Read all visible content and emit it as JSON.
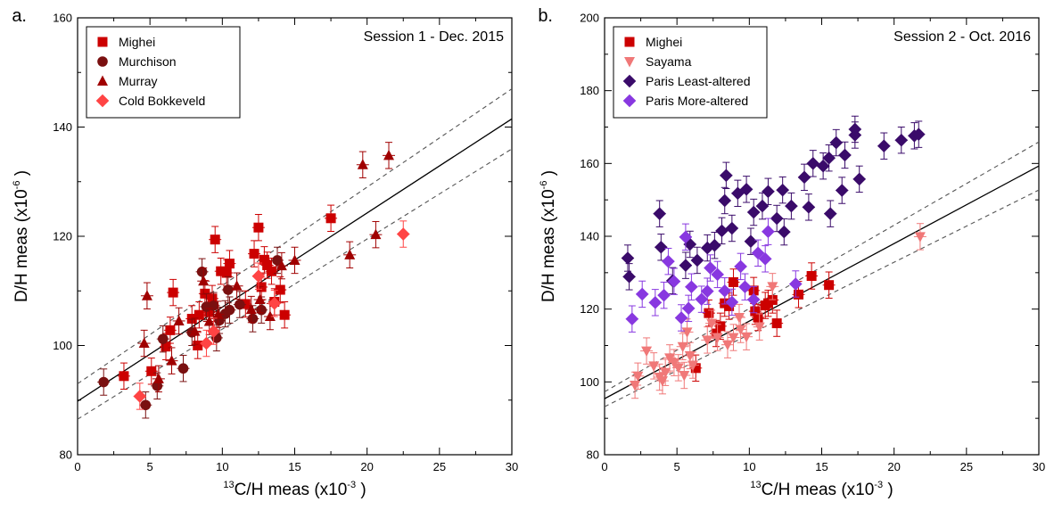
{
  "chart_data": [
    {
      "type": "scatter",
      "panel_label": "a.",
      "title": "Session 1 - Dec. 2015",
      "xlabel": {
        "sup": "13",
        "main": "C/H meas (x10",
        "exp": "-3",
        "close": " )"
      },
      "ylabel": {
        "main": "D/H meas (x10",
        "exp": "-6",
        "close": " )"
      },
      "xlim": [
        0,
        30
      ],
      "ylim": [
        80,
        160
      ],
      "xticks": [
        "0",
        "5",
        "10",
        "15",
        "20",
        "25",
        "30"
      ],
      "yticks": [
        "80",
        "100",
        "120",
        "140",
        "160"
      ],
      "legend_position": "top-left",
      "fit_line": {
        "x": [
          0,
          30
        ],
        "y": [
          89.8,
          141.5
        ]
      },
      "fit_band": {
        "upper": {
          "x": [
            0,
            30
          ],
          "y": [
            93.0,
            147.0
          ]
        },
        "lower": {
          "x": [
            0,
            30
          ],
          "y": [
            86.5,
            136.0
          ]
        }
      },
      "series": [
        {
          "name": "Mighei",
          "marker": "square",
          "color": "#cc0000",
          "points": [
            [
              3.2,
              94.4
            ],
            [
              5.1,
              95.3
            ],
            [
              6.1,
              99.8
            ],
            [
              6.4,
              102.8
            ],
            [
              6.6,
              109.7
            ],
            [
              7.9,
              104.9
            ],
            [
              8.3,
              100.0
            ],
            [
              8.4,
              105.6
            ],
            [
              8.8,
              109.5
            ],
            [
              9.1,
              106.1
            ],
            [
              9.3,
              108.6
            ],
            [
              9.5,
              119.4
            ],
            [
              9.9,
              113.6
            ],
            [
              10.3,
              113.3
            ],
            [
              10.5,
              115.0
            ],
            [
              11.6,
              107.6
            ],
            [
              12.2,
              116.8
            ],
            [
              12.5,
              121.6
            ],
            [
              12.7,
              110.7
            ],
            [
              12.9,
              115.7
            ],
            [
              13.1,
              114.7
            ],
            [
              13.4,
              113.6
            ],
            [
              13.6,
              108.0
            ],
            [
              14.0,
              110.2
            ],
            [
              14.3,
              105.6
            ],
            [
              17.5,
              123.3
            ]
          ]
        },
        {
          "name": "Murchison",
          "marker": "circle",
          "color": "#7a1010",
          "points": [
            [
              1.8,
              93.3
            ],
            [
              4.7,
              89.1
            ],
            [
              5.5,
              92.6
            ],
            [
              5.9,
              101.2
            ],
            [
              7.3,
              95.8
            ],
            [
              7.9,
              102.4
            ],
            [
              8.6,
              113.5
            ],
            [
              8.9,
              107.1
            ],
            [
              9.4,
              107.3
            ],
            [
              9.6,
              101.4
            ],
            [
              9.8,
              104.6
            ],
            [
              10.2,
              105.8
            ],
            [
              10.4,
              110.2
            ],
            [
              10.5,
              106.5
            ],
            [
              11.2,
              107.5
            ],
            [
              12.1,
              104.9
            ],
            [
              12.7,
              106.5
            ],
            [
              13.8,
              115.6
            ]
          ]
        },
        {
          "name": "Murray",
          "marker": "triangle",
          "color": "#a00000",
          "points": [
            [
              4.6,
              100.4
            ],
            [
              4.8,
              109.1
            ],
            [
              5.6,
              93.9
            ],
            [
              6.5,
              97.2
            ],
            [
              7.0,
              104.5
            ],
            [
              8.1,
              102.6
            ],
            [
              8.7,
              111.8
            ],
            [
              9.1,
              104.4
            ],
            [
              9.7,
              105.7
            ],
            [
              11.0,
              110.9
            ],
            [
              12.0,
              106.6
            ],
            [
              12.6,
              108.4
            ],
            [
              13.3,
              105.3
            ],
            [
              14.1,
              114.6
            ],
            [
              15.0,
              115.6
            ],
            [
              18.8,
              116.6
            ],
            [
              19.7,
              133.1
            ],
            [
              20.6,
              120.3
            ],
            [
              21.5,
              134.8
            ]
          ]
        },
        {
          "name": "Cold Bokkeveld",
          "marker": "diamond",
          "color": "#ff4444",
          "points": [
            [
              4.3,
              90.7
            ],
            [
              8.9,
              100.4
            ],
            [
              9.4,
              102.6
            ],
            [
              12.5,
              112.7
            ],
            [
              13.6,
              107.7
            ],
            [
              22.5,
              120.4
            ]
          ]
        }
      ]
    },
    {
      "type": "scatter",
      "panel_label": "b.",
      "title": "Session 2 - Oct. 2016",
      "xlabel": {
        "sup": "13",
        "main": "C/H meas (x10",
        "exp": "-3",
        "close": " )"
      },
      "ylabel": {
        "main": "D/H meas (x10",
        "exp": "-6",
        "close": " )"
      },
      "xlim": [
        0,
        30
      ],
      "ylim": [
        80,
        200
      ],
      "xticks": [
        "0",
        "5",
        "10",
        "15",
        "20",
        "25",
        "30"
      ],
      "yticks": [
        "80",
        "100",
        "120",
        "140",
        "160",
        "180",
        "200"
      ],
      "legend_position": "top-left",
      "fit_line": {
        "x": [
          0,
          30
        ],
        "y": [
          95.4,
          159.3
        ]
      },
      "fit_band": {
        "upper": {
          "x": [
            0,
            30
          ],
          "y": [
            97.3,
            165.9
          ]
        },
        "lower": {
          "x": [
            0,
            30
          ],
          "y": [
            93.2,
            152.7
          ]
        }
      },
      "series": [
        {
          "name": "Mighei",
          "marker": "square",
          "color": "#cc0000",
          "points": [
            [
              6.3,
              103.8
            ],
            [
              7.2,
              118.9
            ],
            [
              7.7,
              113.3
            ],
            [
              8.0,
              115.3
            ],
            [
              8.3,
              121.6
            ],
            [
              8.6,
              120.8
            ],
            [
              8.9,
              127.4
            ],
            [
              10.3,
              125.1
            ],
            [
              10.4,
              119.4
            ],
            [
              10.6,
              117.7
            ],
            [
              11.1,
              121.0
            ],
            [
              11.3,
              121.6
            ],
            [
              11.6,
              122.5
            ],
            [
              11.9,
              116.1
            ],
            [
              13.4,
              124.0
            ],
            [
              14.3,
              129.1
            ],
            [
              15.5,
              126.6
            ]
          ]
        },
        {
          "name": "Sayama",
          "marker": "triangle-down",
          "color": "#f07878",
          "points": [
            [
              2.1,
              99.1
            ],
            [
              2.3,
              101.6
            ],
            [
              2.9,
              108.5
            ],
            [
              3.4,
              104.4
            ],
            [
              3.8,
              101.3
            ],
            [
              4.0,
              100.3
            ],
            [
              4.2,
              102.6
            ],
            [
              4.5,
              106.6
            ],
            [
              4.8,
              105.3
            ],
            [
              5.1,
              103.9
            ],
            [
              5.4,
              109.7
            ],
            [
              5.5,
              101.8
            ],
            [
              5.7,
              113.7
            ],
            [
              5.9,
              107.2
            ],
            [
              6.1,
              104.6
            ],
            [
              7.1,
              111.5
            ],
            [
              7.4,
              116.1
            ],
            [
              7.8,
              112.2
            ],
            [
              8.5,
              110.2
            ],
            [
              8.9,
              112.2
            ],
            [
              9.3,
              117.7
            ],
            [
              9.4,
              114.4
            ],
            [
              9.8,
              112.4
            ],
            [
              10.7,
              115.1
            ],
            [
              11.6,
              126.2
            ],
            [
              21.8,
              139.9
            ]
          ]
        },
        {
          "name": "Paris Least-altered",
          "marker": "diamond",
          "color": "#3a0b6a",
          "points": [
            [
              1.6,
              134.0
            ],
            [
              1.7,
              128.9
            ],
            [
              3.8,
              146.2
            ],
            [
              3.9,
              137.0
            ],
            [
              4.7,
              127.8
            ],
            [
              5.6,
              132.0
            ],
            [
              5.9,
              137.8
            ],
            [
              6.4,
              133.4
            ],
            [
              7.1,
              136.8
            ],
            [
              7.6,
              137.5
            ],
            [
              8.1,
              141.5
            ],
            [
              8.3,
              149.8
            ],
            [
              8.4,
              156.7
            ],
            [
              8.8,
              142.2
            ],
            [
              9.2,
              151.8
            ],
            [
              9.8,
              152.9
            ],
            [
              10.1,
              138.6
            ],
            [
              10.3,
              146.6
            ],
            [
              10.9,
              148.3
            ],
            [
              11.3,
              152.3
            ],
            [
              11.9,
              144.9
            ],
            [
              12.3,
              152.7
            ],
            [
              12.4,
              141.2
            ],
            [
              12.9,
              148.3
            ],
            [
              13.8,
              156.2
            ],
            [
              14.1,
              148.0
            ],
            [
              14.4,
              160.0
            ],
            [
              15.1,
              159.3
            ],
            [
              15.5,
              161.5
            ],
            [
              15.6,
              146.2
            ],
            [
              16.0,
              165.7
            ],
            [
              16.4,
              152.6
            ],
            [
              16.6,
              162.3
            ],
            [
              17.3,
              167.8
            ],
            [
              17.3,
              169.4
            ],
            [
              17.6,
              155.7
            ],
            [
              19.3,
              164.8
            ],
            [
              20.5,
              166.4
            ],
            [
              21.4,
              167.6
            ],
            [
              21.7,
              168.0
            ]
          ]
        },
        {
          "name": "Paris More-altered",
          "marker": "diamond",
          "color": "#8838e0",
          "points": [
            [
              1.9,
              117.3
            ],
            [
              2.6,
              124.1
            ],
            [
              3.5,
              121.8
            ],
            [
              4.1,
              123.8
            ],
            [
              4.4,
              133.1
            ],
            [
              4.8,
              127.6
            ],
            [
              5.3,
              117.6
            ],
            [
              5.6,
              139.8
            ],
            [
              5.8,
              120.2
            ],
            [
              6.0,
              126.1
            ],
            [
              6.7,
              122.7
            ],
            [
              7.1,
              124.9
            ],
            [
              7.3,
              131.3
            ],
            [
              7.8,
              129.5
            ],
            [
              8.3,
              125.0
            ],
            [
              8.8,
              121.9
            ],
            [
              9.4,
              131.7
            ],
            [
              9.7,
              126.1
            ],
            [
              10.3,
              122.6
            ],
            [
              10.6,
              135.4
            ],
            [
              11.1,
              133.8
            ],
            [
              11.3,
              141.3
            ],
            [
              13.2,
              126.9
            ]
          ]
        }
      ]
    }
  ]
}
